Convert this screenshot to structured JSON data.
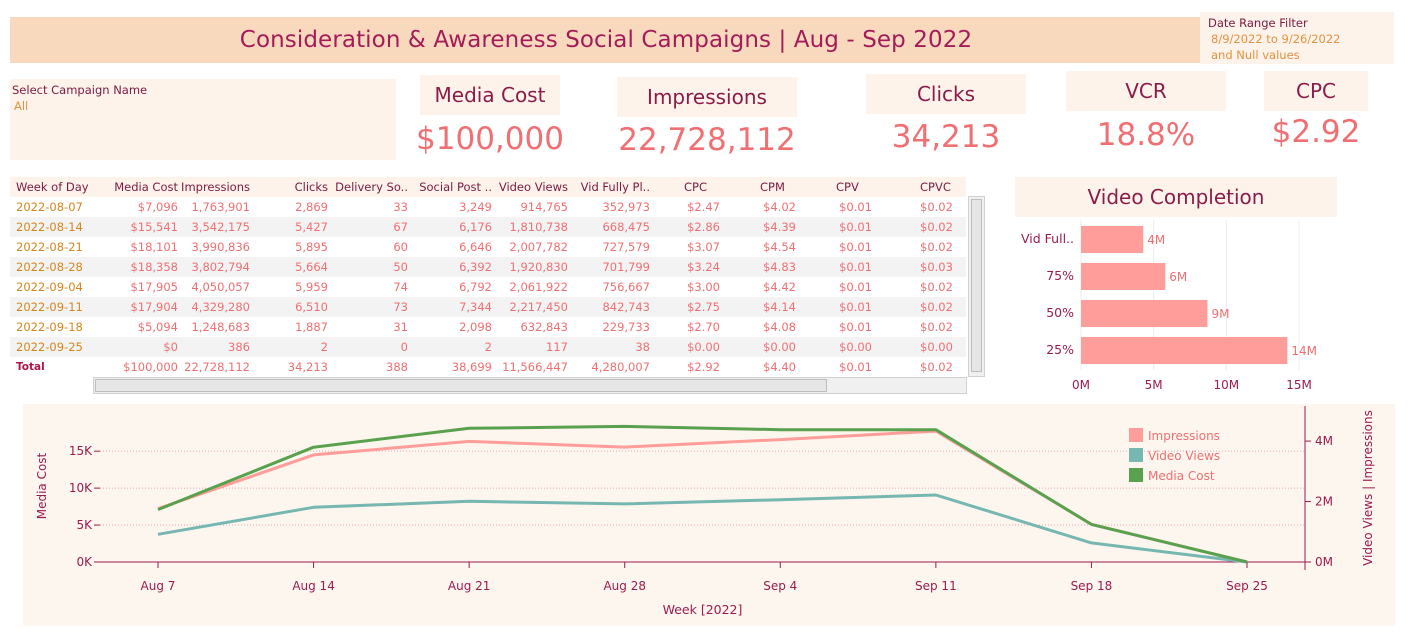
{
  "title": "Consideration & Awareness Social Campaigns | Aug - Sep 2022",
  "date_filter": {
    "label": "Date Range Filter",
    "value_line1": "8/9/2022 to 9/26/2022",
    "value_line2": "and Null values"
  },
  "campaign_filter": {
    "label": "Select Campaign Name",
    "value": "All"
  },
  "kpis": [
    {
      "title": "Media Cost",
      "value": "$100,000"
    },
    {
      "title": "Impressions",
      "value": "22,728,112"
    },
    {
      "title": "Clicks",
      "value": "34,213"
    },
    {
      "title": "VCR",
      "value": "18.8%"
    },
    {
      "title": "CPC",
      "value": "$2.92"
    }
  ],
  "table": {
    "headers": [
      "Week of Day",
      "Media Cost",
      "Impressions",
      "Clicks",
      "Delivery So..",
      "Social Post ..",
      "Video Views",
      "Vid Fully Pl..",
      "CPC",
      "CPM",
      "CPV",
      "CPVC"
    ],
    "rows": [
      [
        "2022-08-07",
        "$7,096",
        "1,763,901",
        "2,869",
        "33",
        "3,249",
        "914,765",
        "352,973",
        "$2.47",
        "$4.02",
        "$0.01",
        "$0.02"
      ],
      [
        "2022-08-14",
        "$15,541",
        "3,542,175",
        "5,427",
        "67",
        "6,176",
        "1,810,738",
        "668,475",
        "$2.86",
        "$4.39",
        "$0.01",
        "$0.02"
      ],
      [
        "2022-08-21",
        "$18,101",
        "3,990,836",
        "5,895",
        "60",
        "6,646",
        "2,007,782",
        "727,579",
        "$3.07",
        "$4.54",
        "$0.01",
        "$0.02"
      ],
      [
        "2022-08-28",
        "$18,358",
        "3,802,794",
        "5,664",
        "50",
        "6,392",
        "1,920,830",
        "701,799",
        "$3.24",
        "$4.83",
        "$0.01",
        "$0.03"
      ],
      [
        "2022-09-04",
        "$17,905",
        "4,050,057",
        "5,959",
        "74",
        "6,792",
        "2,061,922",
        "756,667",
        "$3.00",
        "$4.42",
        "$0.01",
        "$0.02"
      ],
      [
        "2022-09-11",
        "$17,904",
        "4,329,280",
        "6,510",
        "73",
        "7,344",
        "2,217,450",
        "842,743",
        "$2.75",
        "$4.14",
        "$0.01",
        "$0.02"
      ],
      [
        "2022-09-18",
        "$5,094",
        "1,248,683",
        "1,887",
        "31",
        "2,098",
        "632,843",
        "229,733",
        "$2.70",
        "$4.08",
        "$0.01",
        "$0.02"
      ],
      [
        "2022-09-25",
        "$0",
        "386",
        "2",
        "0",
        "2",
        "117",
        "38",
        "$0.00",
        "$0.00",
        "$0.00",
        "$0.00"
      ]
    ],
    "total": [
      "Total",
      "$100,000",
      "22,728,112",
      "34,213",
      "388",
      "38,699",
      "11,566,447",
      "4,280,007",
      "$2.92",
      "$4.40",
      "$0.01",
      "$0.02"
    ]
  },
  "chart_data": [
    {
      "type": "bar",
      "orientation": "horizontal",
      "title": "Video Completion",
      "categories": [
        "Vid Full..",
        "75%",
        "50%",
        "25%"
      ],
      "values": [
        4.28,
        5.8,
        8.7,
        14.2
      ],
      "data_labels": [
        "4M",
        "6M",
        "9M",
        "14M"
      ],
      "xlim": [
        0,
        15
      ],
      "x_ticks": [
        "0M",
        "5M",
        "10M",
        "15M"
      ],
      "color": "#ff9d9a",
      "grid": true
    },
    {
      "type": "line",
      "x": [
        "Aug 7",
        "Aug 14",
        "Aug 21",
        "Aug 28",
        "Sep 4",
        "Sep 11",
        "Sep 18",
        "Sep 25"
      ],
      "xlabel": "Week [2022]",
      "ylabel_left": "Media Cost",
      "ylabel_right": "Video Views | Impressions",
      "ylim_left": [
        0,
        18000
      ],
      "left_ticks": [
        "0K",
        "5K",
        "10K",
        "15K"
      ],
      "left_tick_values": [
        0,
        5000,
        10000,
        15000
      ],
      "ylim_right": [
        0,
        4400000
      ],
      "right_ticks": [
        "0M",
        "2M",
        "4M"
      ],
      "right_tick_values": [
        0,
        2000000,
        4000000
      ],
      "legend_position": "top-right",
      "series": [
        {
          "name": "Impressions",
          "axis": "right",
          "color": "#ff9d9a",
          "values": [
            1763901,
            3542175,
            3990836,
            3802794,
            4050057,
            4329280,
            1248683,
            386
          ]
        },
        {
          "name": "Video Views",
          "axis": "right",
          "color": "#76b7b2",
          "values": [
            914765,
            1810738,
            2007782,
            1920830,
            2061922,
            2217450,
            632843,
            117
          ]
        },
        {
          "name": "Media Cost",
          "axis": "left",
          "color": "#59a14f",
          "values": [
            7096,
            15541,
            18101,
            18358,
            17905,
            17904,
            5094,
            0
          ]
        }
      ]
    }
  ]
}
